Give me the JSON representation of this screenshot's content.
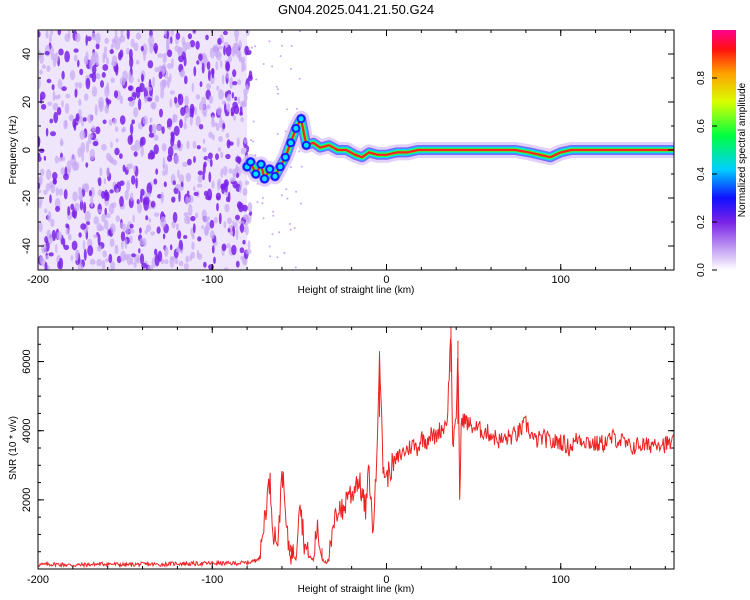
{
  "title": "GN04.2025.041.21.50.G24",
  "colors": {
    "snr_line": "#ee2222",
    "noise_purple": "#7a22e8",
    "noise_light": "#c8a8f4",
    "axis": "#000000"
  },
  "chart_data": [
    {
      "type": "heatmap",
      "title": "GN04.2025.041.21.50.G24",
      "xlabel": "Height of straight line (km)",
      "ylabel": "Frequency (Hz)",
      "xlim": [
        -200,
        165
      ],
      "ylim": [
        -50,
        50
      ],
      "xticks": [
        -200,
        -100,
        0,
        100
      ],
      "xtick_labels": [
        "-200",
        "-100",
        "0",
        "100"
      ],
      "yticks": [
        -40,
        -20,
        0,
        20,
        40
      ],
      "ytick_labels": [
        "-40",
        "-20",
        "0",
        "20",
        "40"
      ],
      "colorbar": {
        "label": "Normalized spectral amplitude",
        "range": [
          0,
          1
        ],
        "ticks": [
          0,
          0.2,
          0.4,
          0.6,
          0.8
        ],
        "tick_labels": [
          "0.0",
          "0.2",
          "0.4",
          "0.6",
          "0.8"
        ]
      },
      "noise_region_x": [
        -200,
        -80
      ],
      "signal_track": [
        {
          "x": -80,
          "y": -7
        },
        {
          "x": -78,
          "y": -5
        },
        {
          "x": -75,
          "y": -10
        },
        {
          "x": -72,
          "y": -6
        },
        {
          "x": -70,
          "y": -12
        },
        {
          "x": -67,
          "y": -8
        },
        {
          "x": -64,
          "y": -11
        },
        {
          "x": -61,
          "y": -7
        },
        {
          "x": -58,
          "y": -3
        },
        {
          "x": -55,
          "y": 3
        },
        {
          "x": -52,
          "y": 9
        },
        {
          "x": -49,
          "y": 13
        },
        {
          "x": -46,
          "y": 2
        },
        {
          "x": -42,
          "y": 3
        },
        {
          "x": -38,
          "y": 1
        },
        {
          "x": -33,
          "y": 2
        },
        {
          "x": -28,
          "y": 0
        },
        {
          "x": -23,
          "y": 0
        },
        {
          "x": -18,
          "y": -2
        },
        {
          "x": -14,
          "y": -3
        },
        {
          "x": -10,
          "y": -1
        },
        {
          "x": -5,
          "y": -2
        },
        {
          "x": 0,
          "y": -2
        },
        {
          "x": 6,
          "y": -1
        },
        {
          "x": 12,
          "y": -1
        },
        {
          "x": 18,
          "y": 0
        },
        {
          "x": 24,
          "y": 0
        },
        {
          "x": 30,
          "y": 0
        },
        {
          "x": 36,
          "y": 0
        },
        {
          "x": 42,
          "y": 0
        },
        {
          "x": 50,
          "y": 0
        },
        {
          "x": 58,
          "y": 0
        },
        {
          "x": 66,
          "y": 0
        },
        {
          "x": 74,
          "y": 0
        },
        {
          "x": 82,
          "y": -1
        },
        {
          "x": 88,
          "y": -2
        },
        {
          "x": 94,
          "y": -3
        },
        {
          "x": 100,
          "y": -1
        },
        {
          "x": 106,
          "y": 0
        },
        {
          "x": 115,
          "y": 0
        },
        {
          "x": 125,
          "y": 0
        },
        {
          "x": 135,
          "y": 0
        },
        {
          "x": 145,
          "y": 0
        },
        {
          "x": 155,
          "y": 0
        },
        {
          "x": 165,
          "y": 0
        }
      ]
    },
    {
      "type": "line",
      "xlabel": "Height of straight line (km)",
      "ylabel": "SNR (10 * v/v)",
      "xlim": [
        -200,
        165
      ],
      "ylim": [
        0,
        7000
      ],
      "xticks": [
        -200,
        -100,
        0,
        100
      ],
      "xtick_labels": [
        "-200",
        "-100",
        "0",
        "100"
      ],
      "yticks": [
        2000,
        4000,
        6000
      ],
      "ytick_labels": [
        "2000",
        "4000",
        "6000"
      ],
      "series": [
        {
          "x": [
            -200,
            -190,
            -180,
            -170,
            -160,
            -150,
            -140,
            -130,
            -120,
            -110,
            -100,
            -90,
            -80,
            -75,
            -72,
            -70,
            -67,
            -65,
            -62,
            -60,
            -57,
            -55,
            -52,
            -50,
            -47,
            -45,
            -42,
            -40,
            -37,
            -35,
            -33,
            -30,
            -27,
            -25,
            -22,
            -20,
            -17,
            -15,
            -12,
            -10,
            -8,
            -6,
            -4,
            -2,
            0,
            2,
            5,
            8,
            10,
            13,
            15,
            18,
            20,
            23,
            25,
            28,
            30,
            33,
            35,
            37,
            38,
            40,
            41,
            42,
            43,
            45,
            47,
            50,
            55,
            60,
            65,
            70,
            75,
            80,
            85,
            90,
            95,
            100,
            105,
            110,
            115,
            120,
            125,
            130,
            135,
            140,
            145,
            150,
            155,
            160,
            165
          ],
          "y": [
            120,
            140,
            110,
            130,
            150,
            120,
            140,
            130,
            160,
            150,
            170,
            160,
            180,
            250,
            500,
            1500,
            2600,
            1100,
            800,
            3000,
            900,
            500,
            300,
            2100,
            700,
            400,
            250,
            1200,
            300,
            200,
            250,
            1300,
            1900,
            1600,
            2300,
            2100,
            2600,
            2400,
            1700,
            2900,
            1100,
            2500,
            6300,
            3000,
            2600,
            2900,
            3100,
            3300,
            3400,
            3500,
            3600,
            3500,
            3800,
            3700,
            3900,
            3800,
            4000,
            4100,
            4400,
            7000,
            3600,
            4200,
            6600,
            2000,
            4400,
            4300,
            4200,
            4100,
            4000,
            3900,
            3700,
            3800,
            3900,
            4200,
            3700,
            3800,
            3650,
            3700,
            3500,
            3800,
            3700,
            3600,
            3650,
            3800,
            3700,
            3500,
            3600,
            3550,
            3700,
            3600,
            3650
          ]
        }
      ]
    }
  ]
}
